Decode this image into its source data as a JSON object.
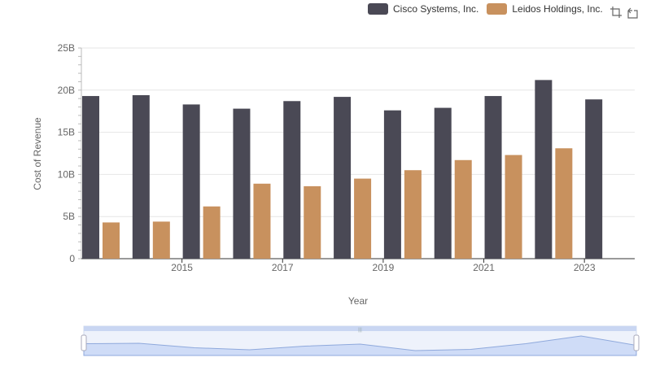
{
  "legend": {
    "items": [
      {
        "label": "Cisco Systems, Inc.",
        "color": "#4a4955"
      },
      {
        "label": "Leidos Holdings, Inc.",
        "color": "#c8915e"
      }
    ]
  },
  "toolbox": {
    "icons": [
      "zoom-icon",
      "restore-icon"
    ]
  },
  "chart_data": {
    "type": "bar",
    "title": "",
    "xlabel": "Year",
    "ylabel": "Cost of Revenue",
    "categories": [
      "2014",
      "2015",
      "2016",
      "2017",
      "2018",
      "2019",
      "2020",
      "2021",
      "2022",
      "2023",
      "2024"
    ],
    "x_tick_labels": [
      "2015",
      "2017",
      "2019",
      "2021",
      "2023"
    ],
    "y_tick_labels": [
      "0",
      "5B",
      "10B",
      "15B",
      "20B",
      "25B"
    ],
    "ylim": [
      0,
      25000000000
    ],
    "grid": true,
    "legend_position": "top-right",
    "series": [
      {
        "name": "Cisco Systems, Inc.",
        "color": "#4a4955",
        "values": [
          19300000000,
          19400000000,
          18300000000,
          17800000000,
          18700000000,
          19200000000,
          17600000000,
          17900000000,
          19300000000,
          21200000000,
          18900000000
        ]
      },
      {
        "name": "Leidos Holdings, Inc.",
        "color": "#c8915e",
        "values": [
          4300000000,
          4400000000,
          6200000000,
          8900000000,
          8600000000,
          9500000000,
          10500000000,
          11700000000,
          12300000000,
          13100000000,
          null
        ]
      }
    ],
    "data_zoom": {
      "start": 0,
      "end": 100
    }
  }
}
